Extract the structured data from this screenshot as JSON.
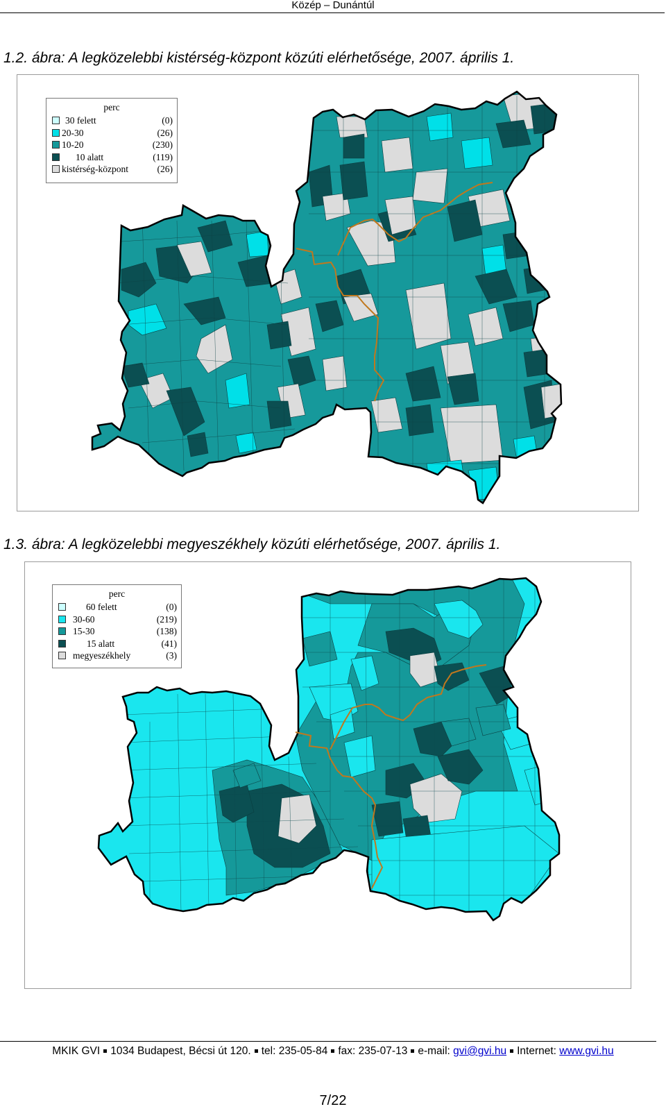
{
  "header": {
    "title": "Közép – Dunántúl"
  },
  "figures": [
    {
      "caption": "1.2. ábra: A legközelebbi kistérség-központ közúti elérhetősége, 2007. április 1.",
      "legend": {
        "title": "perc",
        "items": [
          {
            "label": "30 felett",
            "count": "(0)",
            "color": "#ccffff"
          },
          {
            "label": "20-30",
            "count": "(26)",
            "color": "#00e0e8"
          },
          {
            "label": "10-20",
            "count": "(230)",
            "color": "#15999a"
          },
          {
            "label": "10 alatt",
            "count": "(119)",
            "color": "#0b4f52"
          },
          {
            "label": "kistérség-központ",
            "count": "(26)",
            "color": "#dcdcdc"
          }
        ]
      }
    },
    {
      "caption": "1.3. ábra: A legközelebbi megyeszékhely közúti elérhetősége, 2007. április 1.",
      "legend": {
        "title": "perc",
        "items": [
          {
            "label": "60 felett",
            "count": "(0)",
            "color": "#ccffff"
          },
          {
            "label": "30-60",
            "count": "(219)",
            "color": "#1ae6ee"
          },
          {
            "label": "15-30",
            "count": "(138)",
            "color": "#15999a"
          },
          {
            "label": "15 alatt",
            "count": "(41)",
            "color": "#0b4f52"
          },
          {
            "label": "megyeszékhely",
            "count": "(3)",
            "color": "#dcdcdc"
          }
        ]
      }
    }
  ],
  "footer": {
    "org": "MKIK GVI",
    "address": "1034 Budapest, Bécsi út 120.",
    "tel": "tel: 235-05-84",
    "fax": "fax: 235-07-13",
    "email_label": "e-mail:",
    "email": "gvi@gvi.hu",
    "internet_label": "Internet:",
    "website": "www.gvi.hu"
  },
  "page_number": "7/22",
  "colors": {
    "county_border": "#c0781e",
    "outline": "#000000"
  }
}
